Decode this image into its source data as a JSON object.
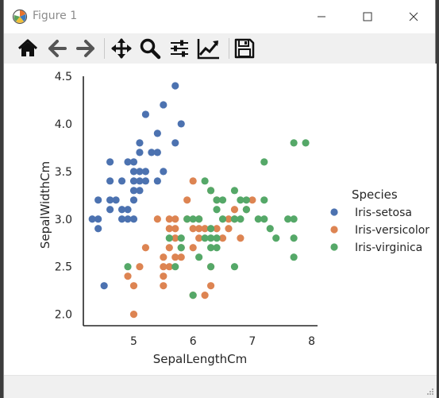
{
  "window": {
    "title": "Figure 1",
    "icons": {
      "app": "matplotlib-icon",
      "minimize": "minimize-icon",
      "maximize": "maximize-icon",
      "close": "close-icon"
    }
  },
  "toolbar": {
    "buttons": [
      {
        "name": "home-icon"
      },
      {
        "name": "back-arrow-icon"
      },
      {
        "name": "forward-arrow-icon"
      },
      {
        "name": "pan-move-icon"
      },
      {
        "name": "zoom-magnifier-icon"
      },
      {
        "name": "configure-subplots-icon"
      },
      {
        "name": "edit-axis-icon"
      },
      {
        "name": "save-floppy-icon"
      }
    ]
  },
  "chart_data": {
    "type": "scatter",
    "xlabel": "SepalLengthCm",
    "ylabel": "SepalWidthCm",
    "xlim": [
      4.15,
      8.1
    ],
    "ylim": [
      1.88,
      4.5
    ],
    "xticks": [
      "5",
      "6",
      "7",
      "8"
    ],
    "yticks": [
      "2.0",
      "2.5",
      "3.0",
      "3.5",
      "4.0",
      "4.5"
    ],
    "grid": false,
    "legend": {
      "title": "Species",
      "placement": "right"
    },
    "series": [
      {
        "name": "Iris-setosa",
        "color": "#4c72b0",
        "points": [
          [
            4.3,
            3.0
          ],
          [
            4.4,
            2.9
          ],
          [
            4.4,
            3.0
          ],
          [
            4.4,
            3.2
          ],
          [
            4.5,
            2.3
          ],
          [
            4.6,
            3.1
          ],
          [
            4.6,
            3.2
          ],
          [
            4.6,
            3.4
          ],
          [
            4.6,
            3.6
          ],
          [
            4.7,
            3.2
          ],
          [
            4.8,
            3.0
          ],
          [
            4.8,
            3.1
          ],
          [
            4.8,
            3.4
          ],
          [
            4.9,
            3.0
          ],
          [
            4.9,
            3.1
          ],
          [
            4.9,
            3.6
          ],
          [
            5.0,
            3.0
          ],
          [
            5.0,
            3.2
          ],
          [
            5.0,
            3.3
          ],
          [
            5.0,
            3.4
          ],
          [
            5.0,
            3.5
          ],
          [
            5.0,
            3.6
          ],
          [
            5.1,
            3.3
          ],
          [
            5.1,
            3.4
          ],
          [
            5.1,
            3.5
          ],
          [
            5.1,
            3.7
          ],
          [
            5.1,
            3.8
          ],
          [
            5.2,
            3.4
          ],
          [
            5.2,
            3.5
          ],
          [
            5.2,
            4.1
          ],
          [
            5.3,
            3.7
          ],
          [
            5.4,
            3.4
          ],
          [
            5.4,
            3.7
          ],
          [
            5.4,
            3.9
          ],
          [
            5.5,
            3.5
          ],
          [
            5.5,
            4.2
          ],
          [
            5.7,
            3.8
          ],
          [
            5.7,
            4.4
          ],
          [
            5.8,
            4.0
          ]
        ]
      },
      {
        "name": "Iris-versicolor",
        "color": "#dd8452",
        "points": [
          [
            4.9,
            2.4
          ],
          [
            5.0,
            2.0
          ],
          [
            5.0,
            2.3
          ],
          [
            5.1,
            2.5
          ],
          [
            5.2,
            2.7
          ],
          [
            5.4,
            3.0
          ],
          [
            5.5,
            2.3
          ],
          [
            5.5,
            2.4
          ],
          [
            5.5,
            2.5
          ],
          [
            5.5,
            2.6
          ],
          [
            5.6,
            2.5
          ],
          [
            5.6,
            2.7
          ],
          [
            5.6,
            2.9
          ],
          [
            5.6,
            3.0
          ],
          [
            5.7,
            2.6
          ],
          [
            5.7,
            2.8
          ],
          [
            5.7,
            2.9
          ],
          [
            5.7,
            3.0
          ],
          [
            5.8,
            2.6
          ],
          [
            5.8,
            2.7
          ],
          [
            5.9,
            3.0
          ],
          [
            5.9,
            3.2
          ],
          [
            6.0,
            2.2
          ],
          [
            6.0,
            2.7
          ],
          [
            6.0,
            2.9
          ],
          [
            6.0,
            3.4
          ],
          [
            6.1,
            2.8
          ],
          [
            6.1,
            2.9
          ],
          [
            6.1,
            3.0
          ],
          [
            6.2,
            2.2
          ],
          [
            6.2,
            2.9
          ],
          [
            6.3,
            2.3
          ],
          [
            6.3,
            2.5
          ],
          [
            6.3,
            3.3
          ],
          [
            6.4,
            2.9
          ],
          [
            6.4,
            3.2
          ],
          [
            6.5,
            2.8
          ],
          [
            6.6,
            2.9
          ],
          [
            6.6,
            3.0
          ],
          [
            6.7,
            3.0
          ],
          [
            6.7,
            3.1
          ],
          [
            6.8,
            2.8
          ],
          [
            6.9,
            3.1
          ],
          [
            7.0,
            3.2
          ]
        ]
      },
      {
        "name": "Iris-virginica",
        "color": "#55a868",
        "points": [
          [
            4.9,
            2.5
          ],
          [
            5.6,
            2.8
          ],
          [
            5.7,
            2.5
          ],
          [
            5.8,
            2.7
          ],
          [
            5.8,
            2.8
          ],
          [
            5.9,
            3.0
          ],
          [
            6.0,
            2.2
          ],
          [
            6.0,
            3.0
          ],
          [
            6.1,
            2.6
          ],
          [
            6.1,
            3.0
          ],
          [
            6.2,
            2.8
          ],
          [
            6.2,
            3.4
          ],
          [
            6.3,
            2.5
          ],
          [
            6.3,
            2.7
          ],
          [
            6.3,
            2.8
          ],
          [
            6.3,
            2.9
          ],
          [
            6.3,
            3.3
          ],
          [
            6.4,
            2.7
          ],
          [
            6.4,
            2.8
          ],
          [
            6.4,
            3.1
          ],
          [
            6.4,
            3.2
          ],
          [
            6.5,
            3.0
          ],
          [
            6.5,
            3.2
          ],
          [
            6.7,
            2.5
          ],
          [
            6.7,
            3.0
          ],
          [
            6.7,
            3.3
          ],
          [
            6.8,
            3.0
          ],
          [
            6.8,
            3.2
          ],
          [
            6.9,
            3.1
          ],
          [
            6.9,
            3.2
          ],
          [
            7.1,
            3.0
          ],
          [
            7.2,
            3.0
          ],
          [
            7.2,
            3.2
          ],
          [
            7.2,
            3.6
          ],
          [
            7.3,
            2.9
          ],
          [
            7.4,
            2.8
          ],
          [
            7.6,
            3.0
          ],
          [
            7.7,
            2.6
          ],
          [
            7.7,
            2.8
          ],
          [
            7.7,
            3.0
          ],
          [
            7.7,
            3.8
          ],
          [
            7.9,
            3.8
          ]
        ]
      }
    ]
  }
}
